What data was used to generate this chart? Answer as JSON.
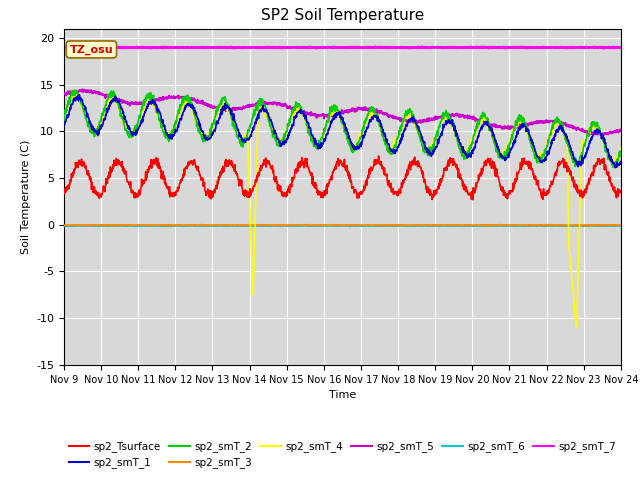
{
  "title": "SP2 Soil Temperature",
  "ylabel": "Soil Temperature (C)",
  "xlabel": "Time",
  "ylim": [
    -15,
    21
  ],
  "yticks": [
    -15,
    -10,
    -5,
    0,
    5,
    10,
    15,
    20
  ],
  "xtick_labels": [
    "Nov 9",
    "Nov 10",
    "Nov 11",
    "Nov 12",
    "Nov 13",
    "Nov 14",
    "Nov 15",
    "Nov 16",
    "Nov 17",
    "Nov 18",
    "Nov 19",
    "Nov 20",
    "Nov 21",
    "Nov 22",
    "Nov 23",
    "Nov 24"
  ],
  "bg_color": "#d8d8d8",
  "annotation_text": "TZ_osu",
  "annotation_color": "#cc0000",
  "annotation_bg": "#ffffcc",
  "series_colors": {
    "sp2_Tsurface": "#ff0000",
    "sp2_smT_1": "#0000cc",
    "sp2_smT_2": "#00cc00",
    "sp2_smT_3": "#ff8800",
    "sp2_smT_4": "#ffff00",
    "sp2_smT_5": "#cc00cc",
    "sp2_smT_6": "#00cccc",
    "sp2_smT_7": "#ff00ff"
  }
}
